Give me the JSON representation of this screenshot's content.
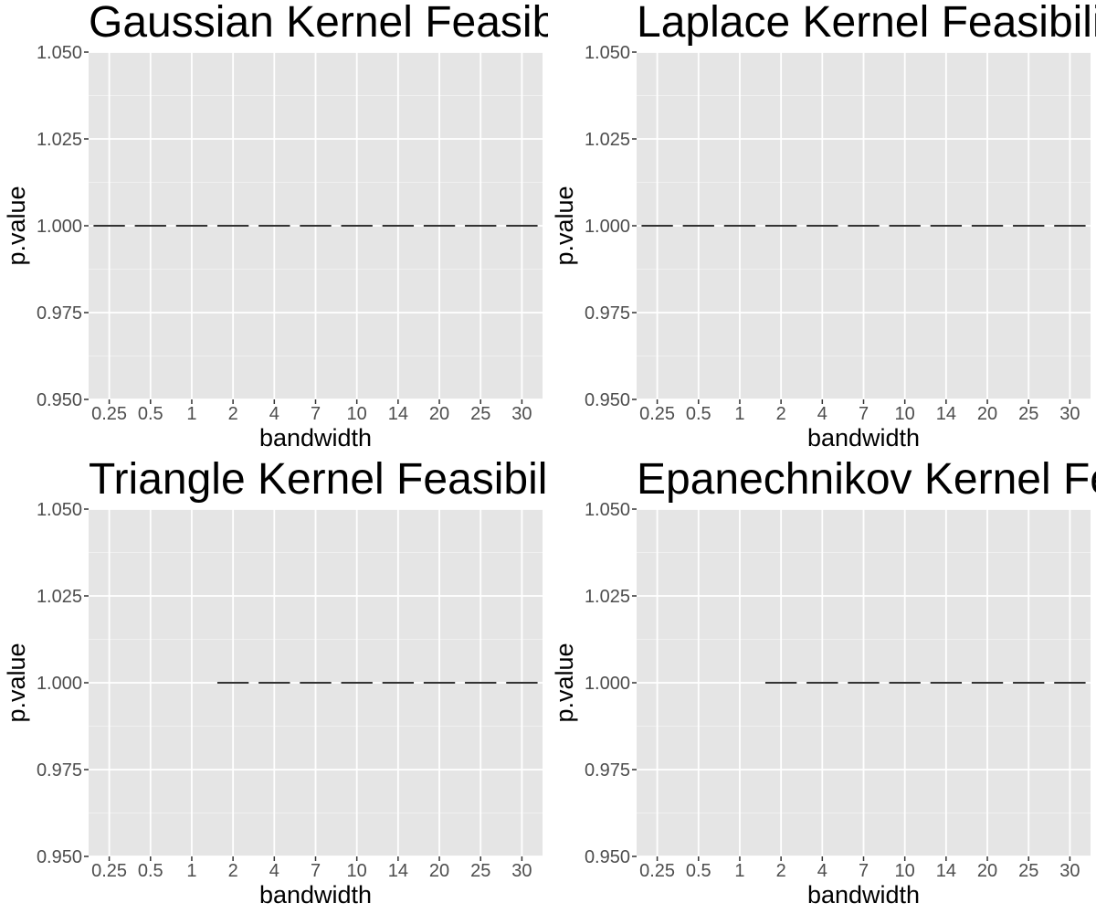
{
  "chart_data": [
    {
      "type": "bar",
      "title": "Gaussian Kernel Feasibility",
      "xlabel": "bandwidth",
      "ylabel": "p.value",
      "categories": [
        "0.25",
        "0.5",
        "1",
        "2",
        "4",
        "7",
        "10",
        "14",
        "20",
        "25",
        "30"
      ],
      "values": [
        1.0,
        1.0,
        1.0,
        1.0,
        1.0,
        1.0,
        1.0,
        1.0,
        1.0,
        1.0,
        1.0
      ],
      "ylim": [
        0.95,
        1.05
      ],
      "yticks": [
        "0.950",
        "0.975",
        "1.000",
        "1.025",
        "1.050"
      ],
      "grid": true
    },
    {
      "type": "bar",
      "title": "Laplace Kernel Feasibility",
      "xlabel": "bandwidth",
      "ylabel": "p.value",
      "categories": [
        "0.25",
        "0.5",
        "1",
        "2",
        "4",
        "7",
        "10",
        "14",
        "20",
        "25",
        "30"
      ],
      "values": [
        1.0,
        1.0,
        1.0,
        1.0,
        1.0,
        1.0,
        1.0,
        1.0,
        1.0,
        1.0,
        1.0
      ],
      "ylim": [
        0.95,
        1.05
      ],
      "yticks": [
        "0.950",
        "0.975",
        "1.000",
        "1.025",
        "1.050"
      ],
      "grid": true
    },
    {
      "type": "bar",
      "title": "Triangle Kernel Feasibility",
      "xlabel": "bandwidth",
      "ylabel": "p.value",
      "categories": [
        "0.25",
        "0.5",
        "1",
        "2",
        "4",
        "7",
        "10",
        "14",
        "20",
        "25",
        "30"
      ],
      "values": [
        null,
        null,
        null,
        1.0,
        1.0,
        1.0,
        1.0,
        1.0,
        1.0,
        1.0,
        1.0
      ],
      "ylim": [
        0.95,
        1.05
      ],
      "yticks": [
        "0.950",
        "0.975",
        "1.000",
        "1.025",
        "1.050"
      ],
      "grid": true
    },
    {
      "type": "bar",
      "title": "Epanechnikov Kernel Feasibility",
      "xlabel": "bandwidth",
      "ylabel": "p.value",
      "categories": [
        "0.25",
        "0.5",
        "1",
        "2",
        "4",
        "7",
        "10",
        "14",
        "20",
        "25",
        "30"
      ],
      "values": [
        null,
        null,
        null,
        1.0,
        1.0,
        1.0,
        1.0,
        1.0,
        1.0,
        1.0,
        1.0
      ],
      "ylim": [
        0.95,
        1.05
      ],
      "yticks": [
        "0.950",
        "0.975",
        "1.000",
        "1.025",
        "1.050"
      ],
      "grid": true
    }
  ],
  "colors": {
    "panel_background": "#e5e5e5",
    "grid_major": "#ffffff",
    "grid_minor": "#f0f0f0",
    "mark": "#333333",
    "tick_text": "#4d4d4d"
  }
}
